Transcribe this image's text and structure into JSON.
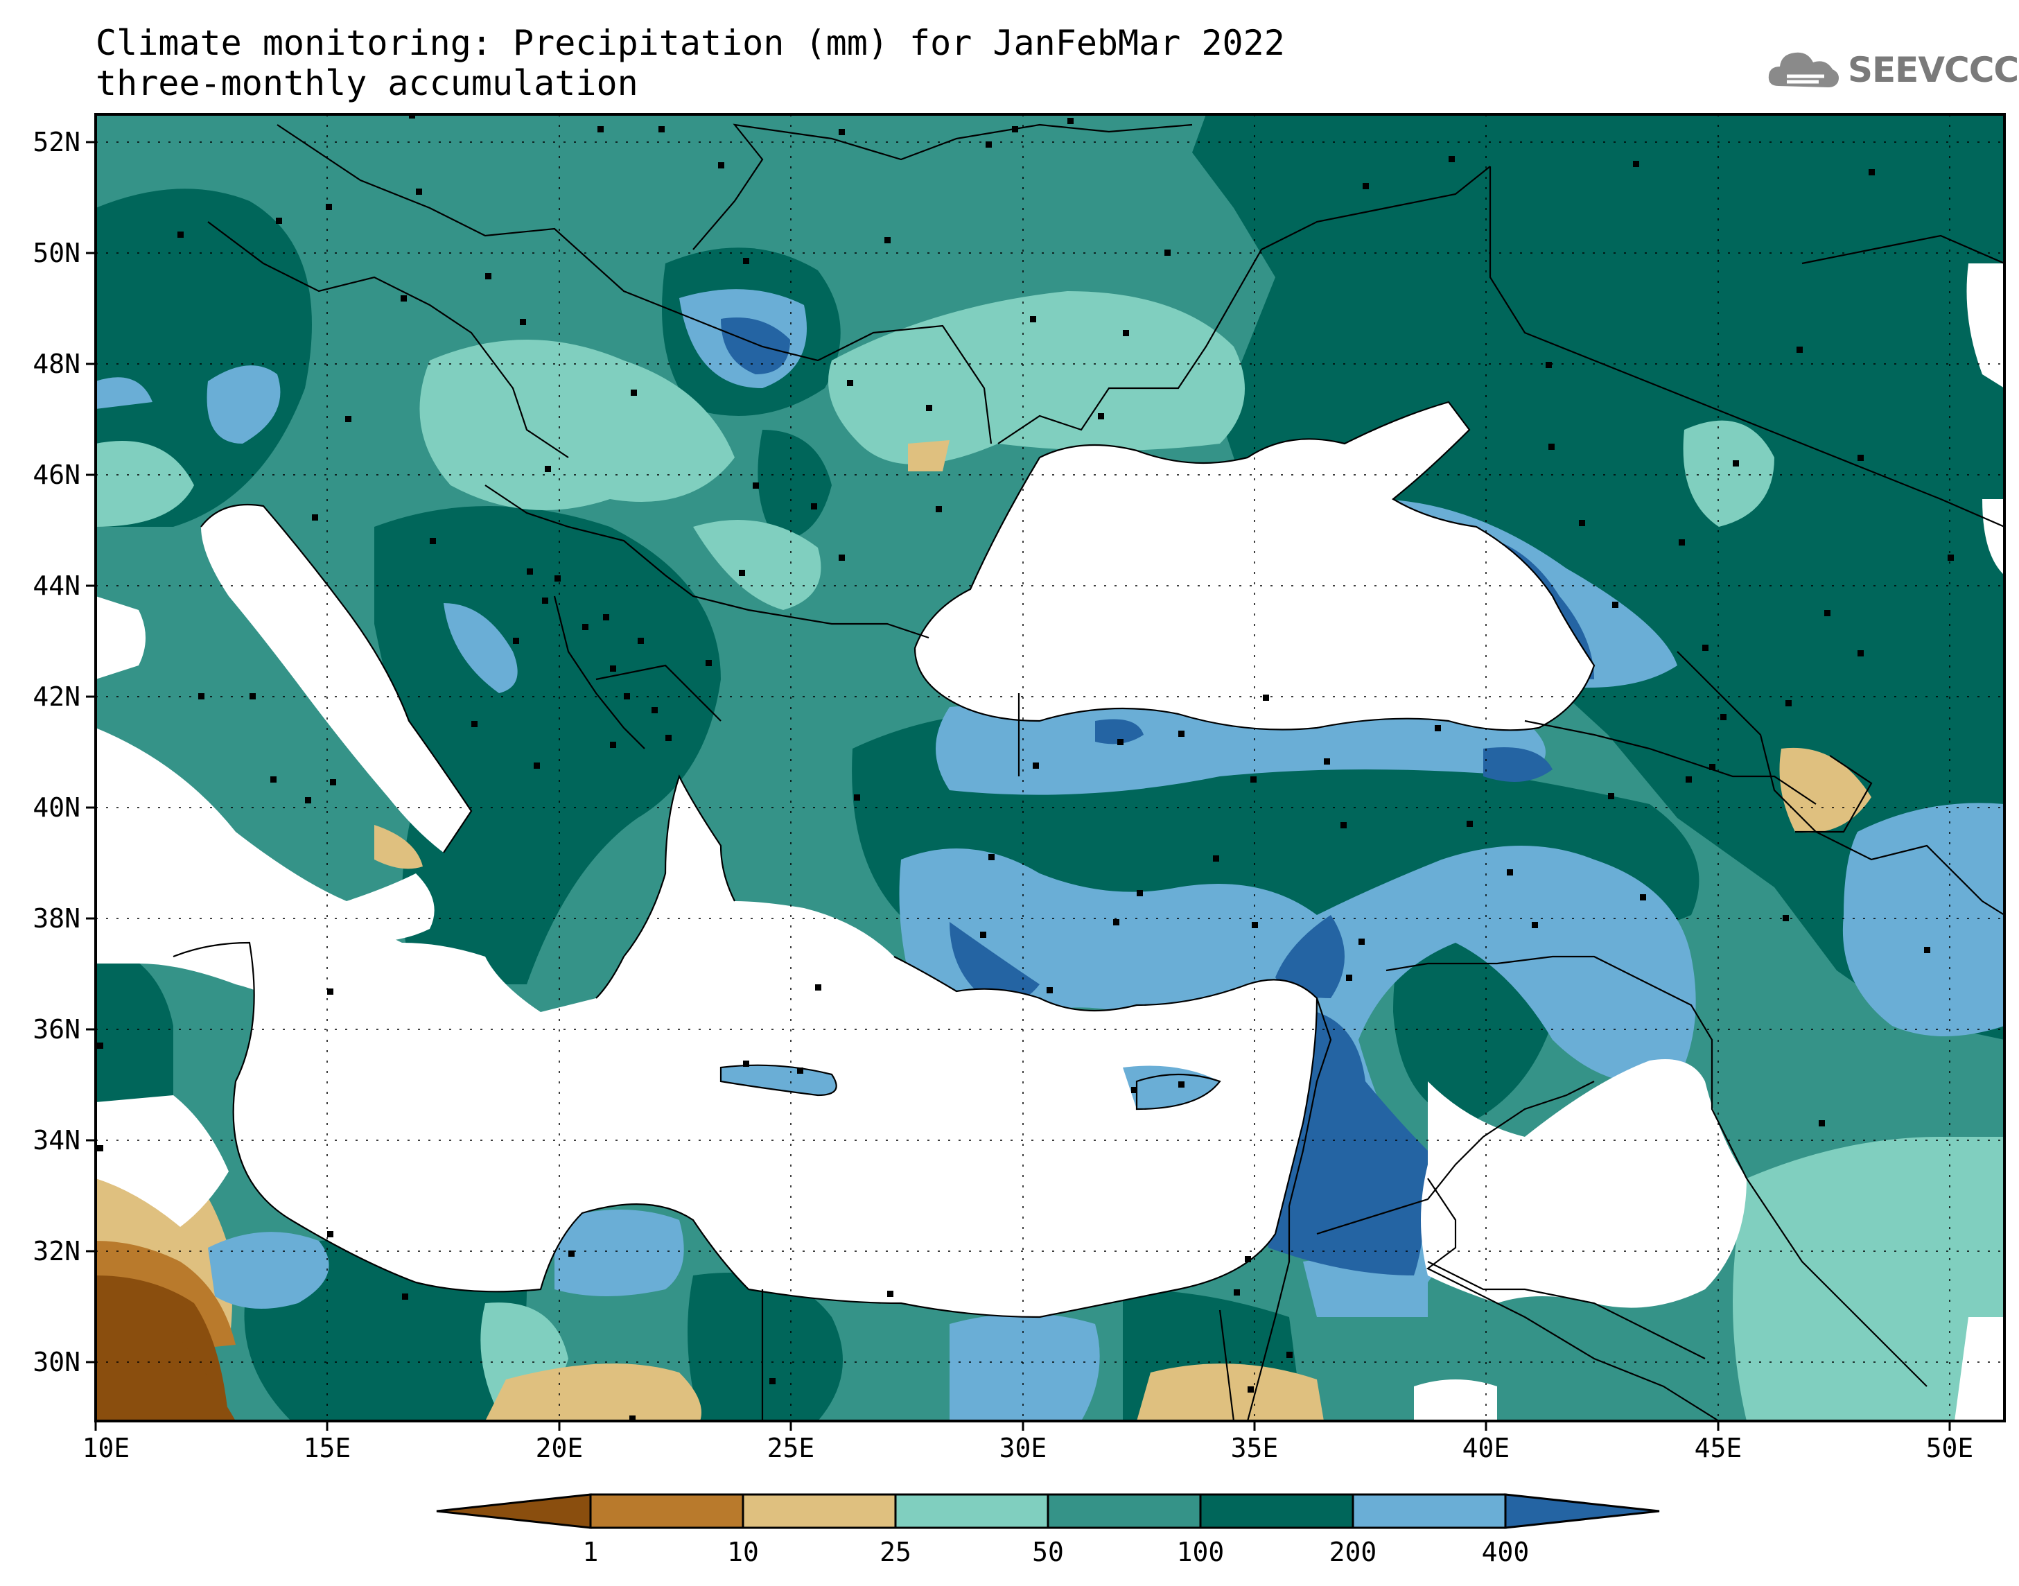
{
  "title": {
    "line1": "Climate monitoring: Precipitation (mm) for JanFebMar 2022",
    "line2": "three-monthly accumulation"
  },
  "logo": {
    "text": "SEEVCCC",
    "icon": "cloud-icon"
  },
  "map": {
    "lon_range": [
      10,
      51
    ],
    "lat_range": [
      29,
      52.5
    ],
    "lat_ticks": [
      "52N",
      "50N",
      "48N",
      "46N",
      "44N",
      "42N",
      "40N",
      "38N",
      "36N",
      "34N",
      "32N",
      "30N"
    ],
    "lon_ticks": [
      "10E",
      "15E",
      "20E",
      "25E",
      "30E",
      "35E",
      "40E",
      "45E",
      "50E"
    ],
    "grid": true
  },
  "legend": {
    "colors": [
      "#8a4e0e",
      "#b97a2c",
      "#dfc07f",
      "#80cfbf",
      "#359388",
      "#00665a",
      "#6aaed6",
      "#2464a3"
    ],
    "labels": [
      "1",
      "10",
      "25",
      "50",
      "100",
      "200",
      "400"
    ]
  }
}
